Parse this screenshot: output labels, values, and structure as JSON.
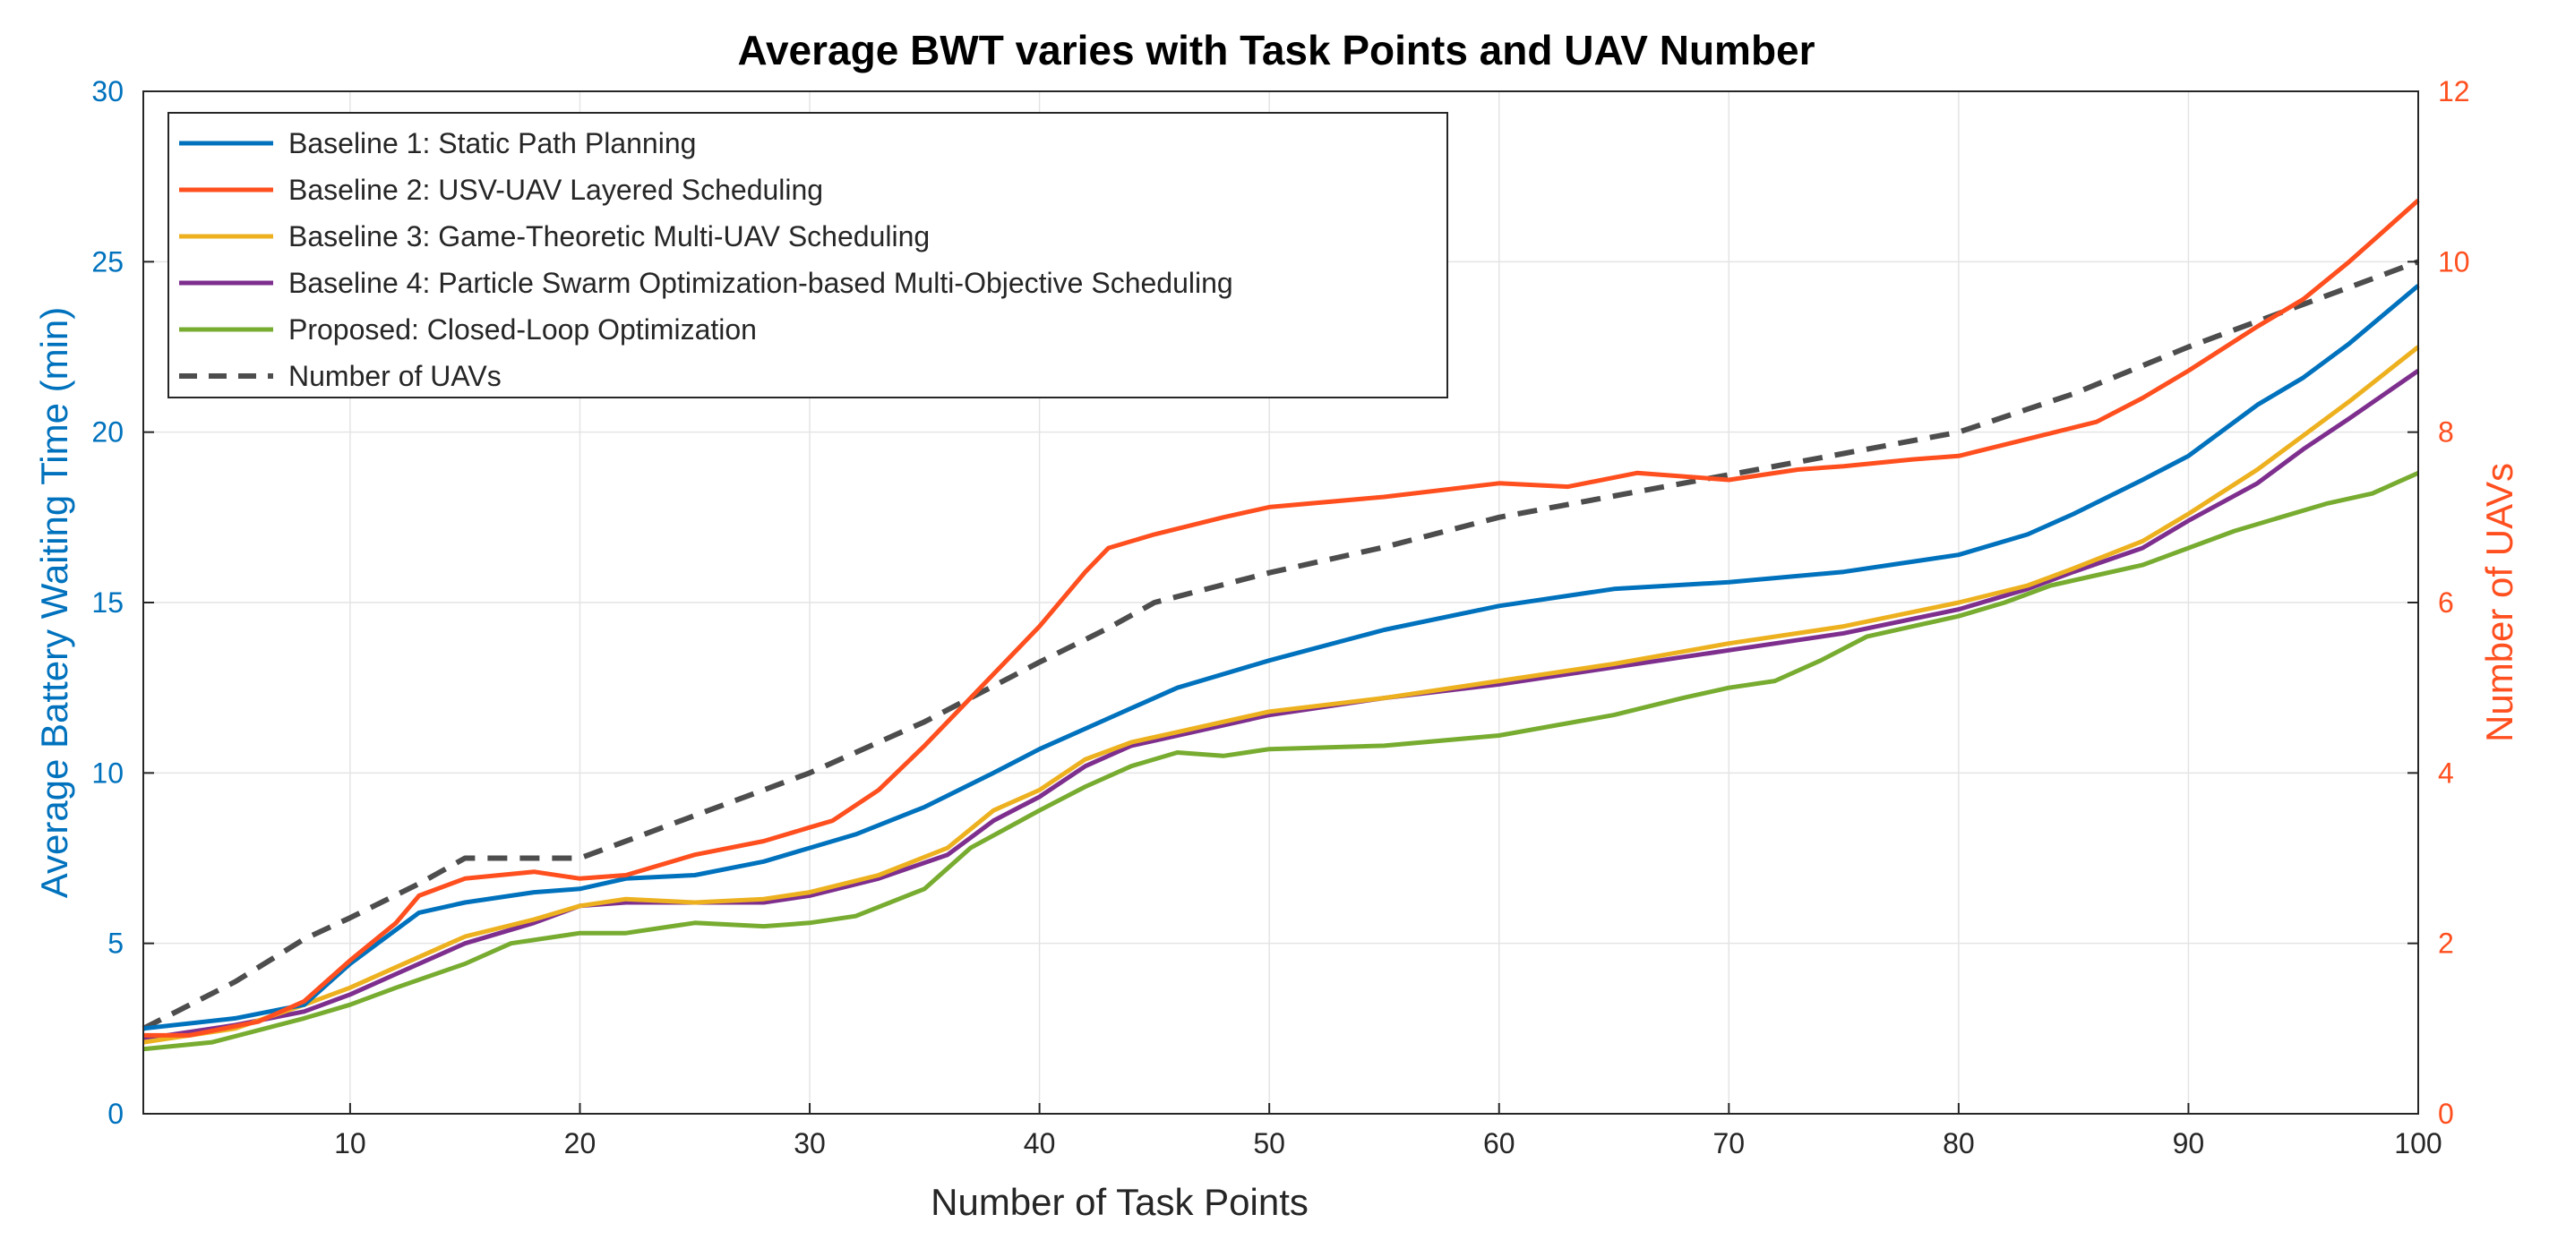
{
  "chart_data": {
    "type": "line",
    "title": "Average BWT varies with Task Points and UAV Number",
    "xlabel": "Number of Task Points",
    "ylabel_left": "Average Battery Waiting Time (min)",
    "ylabel_right": "Number of UAVs",
    "xlim": [
      1,
      100
    ],
    "ylim_left": [
      0,
      30
    ],
    "ylim_right": [
      0,
      12
    ],
    "xticks": [
      10,
      20,
      30,
      40,
      50,
      60,
      70,
      80,
      90,
      100
    ],
    "yticks_left": [
      0,
      5,
      10,
      15,
      20,
      25,
      30
    ],
    "yticks_right": [
      0,
      2,
      4,
      6,
      8,
      10,
      12
    ],
    "grid": true,
    "legend_position": "top-left",
    "colors": {
      "left_axis": "#0072BD",
      "right_axis": "#FF4F1F",
      "grid": "#e4e4e4",
      "axes_box": "#262626"
    },
    "series": [
      {
        "name": "Baseline 1: Static Path Planning",
        "color": "#0072BD",
        "axis": "left",
        "points": [
          [
            1,
            2.5
          ],
          [
            5,
            2.8
          ],
          [
            8,
            3.2
          ],
          [
            10,
            4.4
          ],
          [
            13,
            5.9
          ],
          [
            15,
            6.2
          ],
          [
            18,
            6.5
          ],
          [
            20,
            6.6
          ],
          [
            22,
            6.9
          ],
          [
            25,
            7.0
          ],
          [
            28,
            7.4
          ],
          [
            30,
            7.8
          ],
          [
            32,
            8.2
          ],
          [
            35,
            9.0
          ],
          [
            38,
            10.0
          ],
          [
            40,
            10.7
          ],
          [
            43,
            11.6
          ],
          [
            46,
            12.5
          ],
          [
            50,
            13.3
          ],
          [
            55,
            14.2
          ],
          [
            60,
            14.9
          ],
          [
            65,
            15.4
          ],
          [
            70,
            15.6
          ],
          [
            75,
            15.9
          ],
          [
            80,
            16.4
          ],
          [
            83,
            17.0
          ],
          [
            85,
            17.6
          ],
          [
            88,
            18.6
          ],
          [
            90,
            19.3
          ],
          [
            93,
            20.8
          ],
          [
            95,
            21.6
          ],
          [
            97,
            22.6
          ],
          [
            100,
            24.3
          ]
        ]
      },
      {
        "name": "Baseline 2: USV-UAV Layered Scheduling",
        "color": "#FF4F1F",
        "axis": "left",
        "points": [
          [
            1,
            2.3
          ],
          [
            3,
            2.3
          ],
          [
            6,
            2.7
          ],
          [
            8,
            3.3
          ],
          [
            10,
            4.5
          ],
          [
            12,
            5.6
          ],
          [
            13,
            6.4
          ],
          [
            15,
            6.9
          ],
          [
            18,
            7.1
          ],
          [
            20,
            6.9
          ],
          [
            22,
            7.0
          ],
          [
            25,
            7.6
          ],
          [
            28,
            8.0
          ],
          [
            30,
            8.4
          ],
          [
            31,
            8.6
          ],
          [
            33,
            9.5
          ],
          [
            35,
            10.8
          ],
          [
            37,
            12.2
          ],
          [
            40,
            14.3
          ],
          [
            42,
            15.9
          ],
          [
            43,
            16.6
          ],
          [
            45,
            17.0
          ],
          [
            48,
            17.5
          ],
          [
            50,
            17.8
          ],
          [
            55,
            18.1
          ],
          [
            60,
            18.5
          ],
          [
            63,
            18.4
          ],
          [
            66,
            18.8
          ],
          [
            70,
            18.6
          ],
          [
            73,
            18.9
          ],
          [
            75,
            19.0
          ],
          [
            78,
            19.2
          ],
          [
            80,
            19.3
          ],
          [
            83,
            19.8
          ],
          [
            86,
            20.3
          ],
          [
            88,
            21.0
          ],
          [
            90,
            21.8
          ],
          [
            93,
            23.1
          ],
          [
            95,
            23.9
          ],
          [
            97,
            25.0
          ],
          [
            100,
            26.8
          ]
        ]
      },
      {
        "name": "Baseline 3: Game-Theoretic Multi-UAV Scheduling",
        "color": "#EDB120",
        "axis": "left",
        "points": [
          [
            1,
            2.1
          ],
          [
            5,
            2.5
          ],
          [
            8,
            3.2
          ],
          [
            10,
            3.7
          ],
          [
            12,
            4.3
          ],
          [
            15,
            5.2
          ],
          [
            18,
            5.7
          ],
          [
            20,
            6.1
          ],
          [
            22,
            6.3
          ],
          [
            25,
            6.2
          ],
          [
            28,
            6.3
          ],
          [
            30,
            6.5
          ],
          [
            33,
            7.0
          ],
          [
            36,
            7.8
          ],
          [
            38,
            8.9
          ],
          [
            40,
            9.5
          ],
          [
            42,
            10.4
          ],
          [
            44,
            10.9
          ],
          [
            46,
            11.2
          ],
          [
            50,
            11.8
          ],
          [
            55,
            12.2
          ],
          [
            60,
            12.7
          ],
          [
            65,
            13.2
          ],
          [
            70,
            13.8
          ],
          [
            75,
            14.3
          ],
          [
            80,
            15.0
          ],
          [
            83,
            15.5
          ],
          [
            85,
            16.0
          ],
          [
            88,
            16.8
          ],
          [
            90,
            17.6
          ],
          [
            93,
            18.9
          ],
          [
            95,
            19.9
          ],
          [
            97,
            20.9
          ],
          [
            100,
            22.5
          ]
        ]
      },
      {
        "name": "Baseline 4: Particle Swarm Optimization-based Multi-Objective Scheduling",
        "color": "#7E2F8E",
        "axis": "left",
        "points": [
          [
            1,
            2.2
          ],
          [
            5,
            2.6
          ],
          [
            8,
            3.0
          ],
          [
            10,
            3.5
          ],
          [
            12,
            4.1
          ],
          [
            15,
            5.0
          ],
          [
            18,
            5.6
          ],
          [
            20,
            6.1
          ],
          [
            22,
            6.2
          ],
          [
            25,
            6.2
          ],
          [
            28,
            6.2
          ],
          [
            30,
            6.4
          ],
          [
            33,
            6.9
          ],
          [
            36,
            7.6
          ],
          [
            38,
            8.6
          ],
          [
            40,
            9.3
          ],
          [
            42,
            10.2
          ],
          [
            44,
            10.8
          ],
          [
            46,
            11.1
          ],
          [
            50,
            11.7
          ],
          [
            55,
            12.2
          ],
          [
            60,
            12.6
          ],
          [
            65,
            13.1
          ],
          [
            70,
            13.6
          ],
          [
            75,
            14.1
          ],
          [
            80,
            14.8
          ],
          [
            83,
            15.4
          ],
          [
            85,
            15.9
          ],
          [
            88,
            16.6
          ],
          [
            90,
            17.4
          ],
          [
            93,
            18.5
          ],
          [
            95,
            19.5
          ],
          [
            97,
            20.4
          ],
          [
            100,
            21.8
          ]
        ]
      },
      {
        "name": "Proposed: Closed-Loop Optimization",
        "color": "#77AC30",
        "axis": "left",
        "points": [
          [
            1,
            1.9
          ],
          [
            4,
            2.1
          ],
          [
            8,
            2.8
          ],
          [
            10,
            3.2
          ],
          [
            12,
            3.7
          ],
          [
            15,
            4.4
          ],
          [
            17,
            5.0
          ],
          [
            20,
            5.3
          ],
          [
            22,
            5.3
          ],
          [
            25,
            5.6
          ],
          [
            28,
            5.5
          ],
          [
            30,
            5.6
          ],
          [
            32,
            5.8
          ],
          [
            35,
            6.6
          ],
          [
            37,
            7.8
          ],
          [
            40,
            8.9
          ],
          [
            42,
            9.6
          ],
          [
            44,
            10.2
          ],
          [
            46,
            10.6
          ],
          [
            48,
            10.5
          ],
          [
            50,
            10.7
          ],
          [
            55,
            10.8
          ],
          [
            60,
            11.1
          ],
          [
            65,
            11.7
          ],
          [
            68,
            12.2
          ],
          [
            70,
            12.5
          ],
          [
            72,
            12.7
          ],
          [
            74,
            13.3
          ],
          [
            76,
            14.0
          ],
          [
            78,
            14.3
          ],
          [
            80,
            14.6
          ],
          [
            82,
            15.0
          ],
          [
            84,
            15.5
          ],
          [
            86,
            15.8
          ],
          [
            88,
            16.1
          ],
          [
            90,
            16.6
          ],
          [
            92,
            17.1
          ],
          [
            94,
            17.5
          ],
          [
            96,
            17.9
          ],
          [
            98,
            18.2
          ],
          [
            100,
            18.8
          ]
        ]
      },
      {
        "name": "Number of UAVs",
        "color": "#4D4D4D",
        "axis": "right",
        "dashed": true,
        "points": [
          [
            1,
            1.0
          ],
          [
            5,
            1.55
          ],
          [
            8,
            2.05
          ],
          [
            10,
            2.3
          ],
          [
            13,
            2.7
          ],
          [
            15,
            3.0
          ],
          [
            20,
            3.0
          ],
          [
            22,
            3.2
          ],
          [
            25,
            3.5
          ],
          [
            30,
            4.0
          ],
          [
            35,
            4.6
          ],
          [
            40,
            5.3
          ],
          [
            43,
            5.7
          ],
          [
            45,
            6.0
          ],
          [
            50,
            6.35
          ],
          [
            55,
            6.65
          ],
          [
            60,
            7.0
          ],
          [
            65,
            7.25
          ],
          [
            70,
            7.5
          ],
          [
            75,
            7.75
          ],
          [
            80,
            8.0
          ],
          [
            85,
            8.45
          ],
          [
            90,
            9.0
          ],
          [
            95,
            9.5
          ],
          [
            100,
            10.0
          ]
        ]
      }
    ]
  }
}
